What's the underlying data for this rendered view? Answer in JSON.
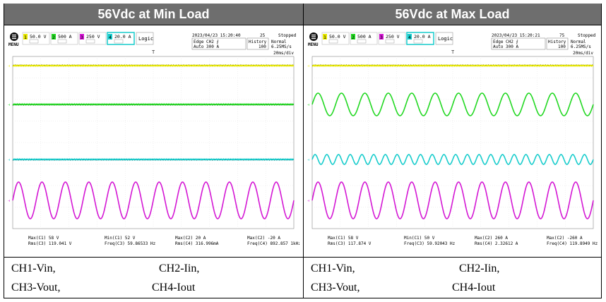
{
  "headers": [
    "56Vdc at Min Load",
    "56Vdc at Max Load"
  ],
  "colors": {
    "ch1": "#e8e800",
    "ch2": "#22d822",
    "ch3": "#d417d4",
    "ch4": "#17cccc",
    "header_bg": "#6e6e6e"
  },
  "panels": [
    {
      "menu": "MENU",
      "channels": [
        {
          "num": "1",
          "scale": "50.0 V"
        },
        {
          "num": "2",
          "scale": "500 A"
        },
        {
          "num": "3",
          "scale": "250 V"
        },
        {
          "num": "4",
          "scale": "20.0 A"
        }
      ],
      "logic": "Logic",
      "datetime": "2023/04/23 15:20:40",
      "count": "25",
      "status": "Stopped",
      "trig1": "Edge CH2 ⨍",
      "trig2": "Auto 300 A",
      "hist1": "History",
      "hist2": "100",
      "mode1": "Normal",
      "mode2": "6.25MS/s",
      "timebase": "20ms/div",
      "meas": [
        [
          "Max(C1)  58 V",
          "Rms(C3)  119.041 V"
        ],
        [
          "Min(C1)  52 V",
          "Freq(C3)  59.86533 Hz"
        ],
        [
          "Max(C2)  20 A",
          "Rms(C4)  316.996mA"
        ],
        [
          "Max(C2)  -20 A",
          "Freq(C4)  892.857 1kHz"
        ]
      ]
    },
    {
      "menu": "MENU",
      "channels": [
        {
          "num": "1",
          "scale": "50.0 V"
        },
        {
          "num": "2",
          "scale": "500 A"
        },
        {
          "num": "3",
          "scale": "250 V"
        },
        {
          "num": "4",
          "scale": "20.0 A"
        }
      ],
      "logic": "Logic",
      "datetime": "2023/04/23 15:20:21",
      "count": "75",
      "status": "Stopped",
      "trig1": "Edge CH2 ⨍",
      "trig2": "Auto 300 A",
      "hist1": "History",
      "hist2": "100",
      "mode1": "Normal",
      "mode2": "6.25MS/s",
      "timebase": "20ms/div",
      "meas": [
        [
          "Max(C1)  58 V",
          "Rms(C3)  117.874 V"
        ],
        [
          "Min(C1)  50 V",
          "Freq(C3)  59.92043 Hz"
        ],
        [
          "Max(C2)  260 A",
          "Rms(C4)  2.32612 A"
        ],
        [
          "Max(C2)  -260 A",
          "Freq(C4)  119.8949 Hz"
        ]
      ]
    }
  ],
  "captions": [
    "CH1-Vin,",
    "CH2-Iin,",
    "CH3-Vout,",
    "CH4-Iout"
  ],
  "chart_data": [
    {
      "type": "line",
      "title": "56Vdc at Min Load",
      "x_unit": "ms",
      "x_range": [
        0,
        200
      ],
      "series": [
        {
          "name": "CH1-Vin",
          "shape": "flat",
          "cycles": 0
        },
        {
          "name": "CH2-Iin",
          "shape": "flat",
          "cycles": 0
        },
        {
          "name": "CH4-Iout",
          "shape": "flat",
          "cycles": 0
        },
        {
          "name": "CH3-Vout",
          "shape": "sine",
          "cycles": 12,
          "rms_V": 119.041,
          "freq_Hz": 59.86533
        }
      ]
    },
    {
      "type": "line",
      "title": "56Vdc at Max Load",
      "x_unit": "ms",
      "x_range": [
        0,
        200
      ],
      "series": [
        {
          "name": "CH1-Vin",
          "shape": "flat",
          "cycles": 0
        },
        {
          "name": "CH2-Iin",
          "shape": "sine",
          "cycles": 12,
          "max_A": 260,
          "min_A": -260
        },
        {
          "name": "CH4-Iout",
          "shape": "sine",
          "cycles": 24,
          "rms_A": 2.32612,
          "freq_Hz": 119.8949
        },
        {
          "name": "CH3-Vout",
          "shape": "sine",
          "cycles": 12,
          "rms_V": 117.874,
          "freq_Hz": 59.92043
        }
      ]
    }
  ]
}
